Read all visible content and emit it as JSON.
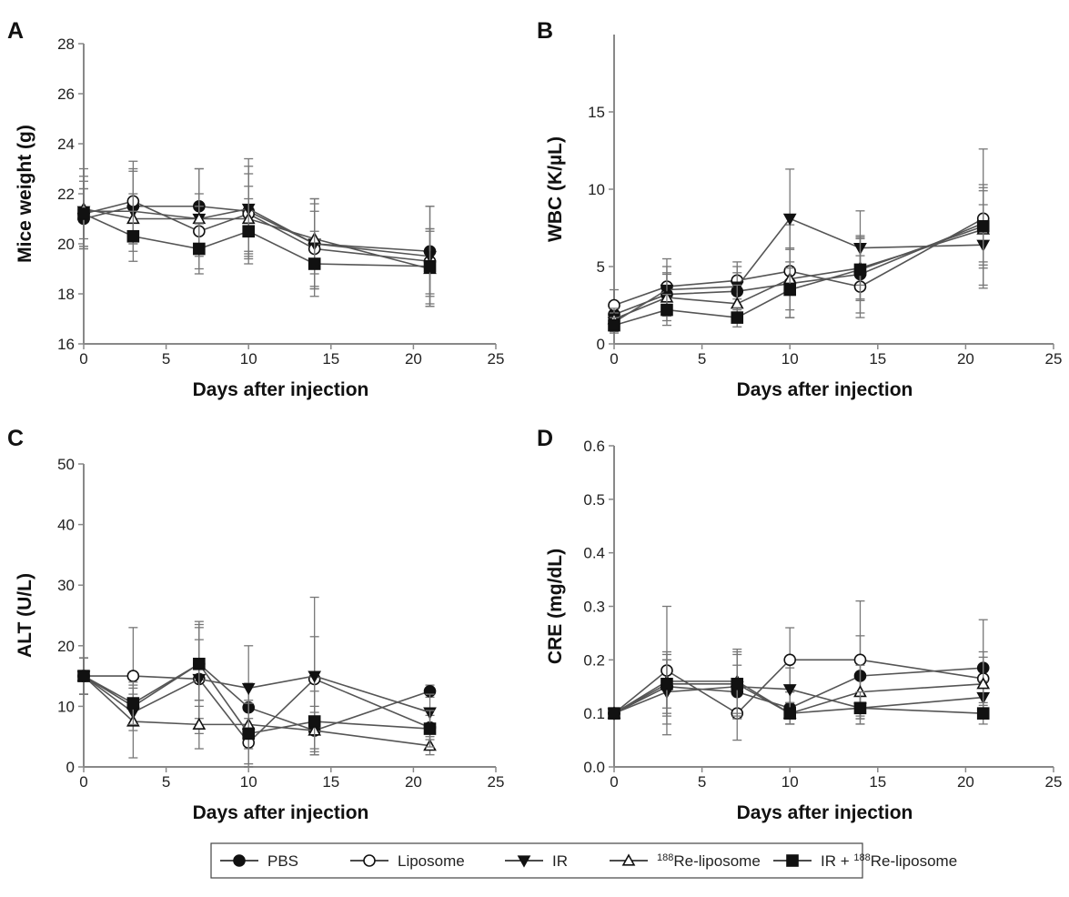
{
  "figure": {
    "legend": [
      {
        "label": "PBS",
        "marker": "circle",
        "filled": true
      },
      {
        "label": "Liposome",
        "marker": "circle",
        "filled": false
      },
      {
        "label": "IR",
        "marker": "triangle-down",
        "filled": true
      },
      {
        "label": "188Re-liposome",
        "marker": "triangle-up",
        "filled": false,
        "sup": "188",
        "text": "Re-liposome"
      },
      {
        "label": "IR + 188Re-liposome",
        "marker": "square",
        "filled": true,
        "pre": "IR + ",
        "sup": "188",
        "text": "Re-liposome"
      }
    ],
    "colors": {
      "line": "#555555",
      "marker": "#111111",
      "error_bar": "#777777",
      "axis": "#888888"
    }
  },
  "chart_data": [
    {
      "panel": "A",
      "type": "line",
      "xlabel": "Days after injection",
      "ylabel": "Mice weight (g)",
      "xlim": [
        0,
        25
      ],
      "ylim": [
        16,
        28
      ],
      "xticks": [
        0,
        5,
        10,
        15,
        20,
        25
      ],
      "yticks": [
        16,
        18,
        20,
        22,
        24,
        26,
        28
      ],
      "x": [
        0,
        3,
        7,
        10,
        14,
        21
      ],
      "series": [
        {
          "name": "PBS",
          "values": [
            21.0,
            21.5,
            21.5,
            21.3,
            20.0,
            19.7
          ],
          "err": [
            1.2,
            1.5,
            1.5,
            1.8,
            1.8,
            1.8
          ]
        },
        {
          "name": "Liposome",
          "values": [
            21.2,
            21.7,
            20.5,
            21.2,
            19.8,
            19.3
          ],
          "err": [
            1.0,
            1.6,
            1.0,
            1.6,
            1.5,
            1.3
          ]
        },
        {
          "name": "IR",
          "values": [
            21.3,
            21.3,
            21.0,
            21.4,
            20.0,
            19.5
          ],
          "err": [
            1.4,
            1.6,
            2.0,
            2.0,
            1.8,
            2.0
          ]
        },
        {
          "name": "188Re-liposome",
          "values": [
            21.4,
            21.0,
            21.0,
            21.0,
            20.2,
            19.0
          ],
          "err": [
            1.6,
            1.0,
            1.0,
            1.3,
            1.4,
            1.5
          ]
        },
        {
          "name": "IR + 188Re-liposome",
          "values": [
            21.2,
            20.3,
            19.8,
            20.5,
            19.2,
            19.1
          ],
          "err": [
            1.3,
            1.0,
            1.0,
            1.3,
            1.3,
            1.5
          ]
        }
      ]
    },
    {
      "panel": "B",
      "type": "line",
      "xlabel": "Days after injection",
      "ylabel": "WBC (K/µL)",
      "xlim": [
        0,
        25
      ],
      "ylim": [
        0,
        20
      ],
      "xticks": [
        0,
        5,
        10,
        15,
        20,
        25
      ],
      "yticks": [
        0,
        5,
        10,
        15
      ],
      "x": [
        0,
        3,
        7,
        10,
        14,
        21
      ],
      "series": [
        {
          "name": "PBS",
          "values": [
            1.9,
            3.2,
            3.4,
            3.9,
            4.5,
            7.8
          ],
          "err": [
            0.8,
            1.4,
            1.2,
            2.2,
            2.5,
            2.5
          ]
        },
        {
          "name": "Liposome",
          "values": [
            2.5,
            3.7,
            4.1,
            4.7,
            3.7,
            8.1
          ],
          "err": [
            1.0,
            1.8,
            1.2,
            3.0,
            2.0,
            4.5
          ]
        },
        {
          "name": "IR",
          "values": [
            1.4,
            3.5,
            3.7,
            8.1,
            6.2,
            6.4
          ],
          "err": [
            0.6,
            1.5,
            1.3,
            3.2,
            2.4,
            2.6
          ]
        },
        {
          "name": "188Re-liposome",
          "values": [
            1.6,
            3.0,
            2.6,
            4.2,
            4.9,
            7.4
          ],
          "err": [
            0.7,
            1.5,
            1.2,
            2.0,
            2.0,
            2.5
          ]
        },
        {
          "name": "IR + 188Re-liposome",
          "values": [
            1.2,
            2.2,
            1.7,
            3.5,
            4.8,
            7.6
          ],
          "err": [
            0.5,
            1.0,
            0.6,
            1.8,
            2.0,
            2.5
          ]
        }
      ]
    },
    {
      "panel": "C",
      "type": "line",
      "xlabel": "Days after injection",
      "ylabel": "ALT (U/L)",
      "xlim": [
        0,
        25
      ],
      "ylim": [
        0,
        50
      ],
      "xticks": [
        0,
        5,
        10,
        15,
        20,
        25
      ],
      "yticks": [
        0,
        10,
        20,
        30,
        40,
        50
      ],
      "x": [
        0,
        3,
        7,
        10,
        14,
        21
      ],
      "series": [
        {
          "name": "PBS",
          "values": [
            15.0,
            10.0,
            17.0,
            9.8,
            6.0,
            12.5
          ],
          "err": [
            3.0,
            3.0,
            6.0,
            4.0,
            3.0,
            1.0
          ]
        },
        {
          "name": "Liposome",
          "values": [
            15.0,
            15.0,
            14.5,
            4.0,
            14.5,
            6.5
          ],
          "err": [
            3.0,
            8.0,
            6.5,
            4.0,
            7.0,
            2.0
          ]
        },
        {
          "name": "IR",
          "values": [
            15.0,
            9.0,
            14.5,
            13.0,
            15.0,
            9.0
          ],
          "err": [
            3.0,
            3.0,
            9.0,
            7.0,
            13.0,
            3.0
          ]
        },
        {
          "name": "188Re-liposome",
          "values": [
            15.0,
            7.5,
            7.0,
            7.0,
            6.0,
            3.5
          ],
          "err": [
            3.0,
            6.0,
            4.0,
            4.0,
            4.0,
            1.5
          ]
        },
        {
          "name": "IR + 188Re-liposome",
          "values": [
            15.0,
            10.5,
            17.0,
            5.5,
            7.5,
            6.3
          ],
          "err": [
            3.0,
            3.5,
            7.0,
            5.0,
            5.0,
            3.0
          ]
        }
      ]
    },
    {
      "panel": "D",
      "type": "line",
      "xlabel": "Days after injection",
      "ylabel": "CRE (mg/dL)",
      "xlim": [
        0,
        25
      ],
      "ylim": [
        0.0,
        0.6
      ],
      "xticks": [
        0,
        5,
        10,
        15,
        20,
        25
      ],
      "yticks": [
        0.0,
        0.1,
        0.2,
        0.3,
        0.4,
        0.5,
        0.6
      ],
      "x": [
        0,
        3,
        7,
        10,
        14,
        21
      ],
      "series": [
        {
          "name": "PBS",
          "values": [
            0.1,
            0.15,
            0.14,
            0.11,
            0.17,
            0.185
          ],
          "err": [
            0.0,
            0.05,
            0.05,
            0.03,
            0.075,
            0.09
          ]
        },
        {
          "name": "Liposome",
          "values": [
            0.1,
            0.18,
            0.1,
            0.2,
            0.2,
            0.165
          ],
          "err": [
            0.0,
            0.12,
            0.05,
            0.06,
            0.11,
            0.05
          ]
        },
        {
          "name": "IR",
          "values": [
            0.1,
            0.14,
            0.15,
            0.145,
            0.11,
            0.13
          ],
          "err": [
            0.0,
            0.06,
            0.06,
            0.04,
            0.03,
            0.03
          ]
        },
        {
          "name": "188Re-liposome",
          "values": [
            0.1,
            0.16,
            0.16,
            0.1,
            0.14,
            0.155
          ],
          "err": [
            0.0,
            0.05,
            0.06,
            0.02,
            0.05,
            0.05
          ]
        },
        {
          "name": "IR + 188Re-liposome",
          "values": [
            0.1,
            0.155,
            0.155,
            0.1,
            0.11,
            0.1
          ],
          "err": [
            0.0,
            0.06,
            0.06,
            0.02,
            0.03,
            0.02
          ]
        }
      ]
    }
  ]
}
